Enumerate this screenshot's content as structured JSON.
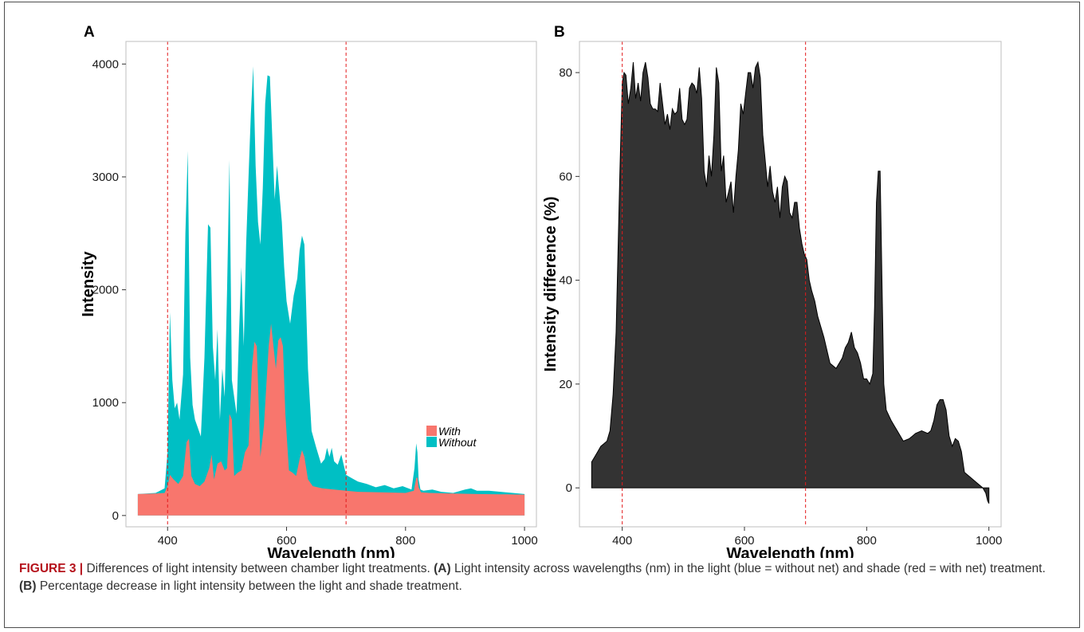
{
  "chart_data": [
    {
      "panel_label": "A",
      "type": "area",
      "xlabel": "Wavelength (nm)",
      "ylabel": "Intensity",
      "xlim": [
        330,
        1020
      ],
      "ylim": [
        -100,
        4200
      ],
      "x_ticks": [
        400,
        600,
        800,
        1000
      ],
      "y_ticks": [
        0,
        1000,
        2000,
        3000,
        4000
      ],
      "vlines": [
        400,
        700
      ],
      "grid": false,
      "legend": {
        "position": "bottom-right",
        "entries": [
          "With",
          "Without"
        ]
      },
      "series": [
        {
          "name": "Without",
          "color": "#00BFC4",
          "x": [
            350,
            380,
            395,
            400,
            404,
            408,
            412,
            416,
            420,
            426,
            430,
            434,
            438,
            442,
            446,
            450,
            456,
            462,
            468,
            472,
            476,
            480,
            484,
            488,
            492,
            496,
            500,
            504,
            508,
            512,
            516,
            520,
            524,
            528,
            532,
            536,
            540,
            544,
            548,
            552,
            556,
            560,
            564,
            568,
            572,
            576,
            580,
            584,
            588,
            592,
            596,
            600,
            606,
            612,
            618,
            622,
            626,
            630,
            636,
            642,
            650,
            658,
            664,
            668,
            672,
            676,
            680,
            686,
            692,
            700,
            710,
            720,
            735,
            750,
            765,
            780,
            795,
            810,
            815,
            818,
            820,
            822,
            825,
            830,
            845,
            860,
            880,
            900,
            910,
            920,
            940,
            960,
            980,
            1000
          ],
          "values": [
            190,
            200,
            240,
            560,
            1800,
            1200,
            950,
            1000,
            850,
            1250,
            2500,
            3230,
            1400,
            980,
            850,
            790,
            700,
            1400,
            2580,
            2550,
            1500,
            1200,
            1650,
            850,
            1300,
            1050,
            2000,
            3150,
            1200,
            1050,
            900,
            1600,
            2200,
            1500,
            2400,
            3000,
            3550,
            3980,
            3100,
            2600,
            2400,
            2900,
            3650,
            3900,
            3890,
            3350,
            2800,
            3100,
            2850,
            2600,
            2200,
            1900,
            1700,
            1950,
            2100,
            2350,
            2480,
            2400,
            1300,
            750,
            600,
            460,
            500,
            600,
            520,
            600,
            480,
            450,
            540,
            360,
            330,
            300,
            280,
            250,
            270,
            240,
            260,
            230,
            420,
            640,
            560,
            320,
            230,
            220,
            230,
            210,
            200,
            230,
            240,
            220,
            220,
            210,
            200,
            190
          ]
        },
        {
          "name": "With",
          "color": "#F8766D",
          "x": [
            350,
            380,
            395,
            400,
            404,
            410,
            418,
            426,
            432,
            436,
            440,
            446,
            454,
            462,
            470,
            474,
            478,
            484,
            490,
            496,
            500,
            504,
            508,
            512,
            518,
            524,
            530,
            536,
            542,
            546,
            550,
            556,
            562,
            566,
            570,
            574,
            578,
            582,
            586,
            590,
            594,
            598,
            604,
            610,
            616,
            622,
            626,
            630,
            636,
            644,
            660,
            680,
            700,
            720,
            760,
            800,
            814,
            818,
            820,
            822,
            826,
            840,
            880,
            920,
            960,
            1000
          ],
          "values": [
            190,
            195,
            200,
            260,
            360,
            320,
            280,
            350,
            650,
            680,
            350,
            280,
            260,
            300,
            420,
            540,
            320,
            460,
            480,
            400,
            420,
            900,
            850,
            350,
            380,
            400,
            560,
            620,
            1320,
            1540,
            1500,
            520,
            800,
            1150,
            1500,
            1700,
            1500,
            1300,
            1550,
            1580,
            1500,
            900,
            400,
            380,
            350,
            500,
            580,
            520,
            320,
            260,
            240,
            230,
            220,
            210,
            205,
            200,
            220,
            330,
            340,
            250,
            205,
            200,
            195,
            190,
            188,
            185
          ]
        }
      ]
    },
    {
      "panel_label": "B",
      "type": "area",
      "xlabel": "Wavelength (nm)",
      "ylabel": "Intensity difference (%)",
      "xlim": [
        330,
        1020
      ],
      "ylim": [
        -7.5,
        86
      ],
      "x_ticks": [
        400,
        600,
        800,
        1000
      ],
      "y_ticks": [
        0,
        20,
        40,
        60,
        80
      ],
      "vlines": [
        400,
        700
      ],
      "grid": false,
      "series": [
        {
          "name": "",
          "color": "#333333",
          "x": [
            350,
            355,
            360,
            365,
            370,
            375,
            380,
            385,
            390,
            393,
            396,
            400,
            403,
            406,
            410,
            414,
            418,
            422,
            426,
            430,
            434,
            438,
            442,
            446,
            450,
            454,
            458,
            462,
            466,
            470,
            474,
            478,
            482,
            486,
            490,
            494,
            498,
            502,
            506,
            510,
            514,
            518,
            522,
            526,
            530,
            534,
            538,
            542,
            546,
            550,
            554,
            558,
            562,
            566,
            570,
            574,
            578,
            582,
            586,
            590,
            594,
            598,
            602,
            606,
            610,
            614,
            618,
            622,
            626,
            630,
            634,
            638,
            642,
            646,
            650,
            654,
            658,
            662,
            666,
            670,
            674,
            678,
            682,
            686,
            690,
            694,
            698,
            702,
            706,
            710,
            715,
            720,
            730,
            740,
            750,
            760,
            765,
            770,
            775,
            780,
            785,
            790,
            795,
            800,
            805,
            810,
            813,
            816,
            819,
            822,
            825,
            828,
            832,
            836,
            840,
            845,
            850,
            855,
            860,
            870,
            880,
            890,
            900,
            905,
            910,
            915,
            920,
            925,
            930,
            935,
            940,
            945,
            950,
            955,
            960,
            970,
            980,
            990,
            995,
            998,
            1000
          ],
          "values": [
            5,
            6,
            7,
            8,
            8.5,
            9,
            11,
            18,
            30,
            45,
            60,
            78,
            80,
            79.5,
            74,
            77,
            82,
            75,
            78,
            74.5,
            80,
            82,
            79,
            74,
            73,
            73,
            72.5,
            78,
            74,
            70,
            72,
            69,
            73,
            72,
            72.5,
            77,
            71,
            70,
            71,
            77,
            78,
            77.5,
            76,
            81,
            75,
            61,
            58,
            64,
            60,
            68,
            81,
            78,
            61,
            64,
            55,
            57,
            59,
            53,
            60,
            65,
            74,
            72,
            76,
            80,
            80,
            77,
            81,
            82,
            79,
            68,
            63,
            58,
            62,
            57,
            55,
            58,
            52,
            58,
            60,
            59,
            53,
            52,
            55,
            55,
            50,
            47,
            45,
            44,
            40,
            38,
            36,
            33,
            29,
            24,
            23,
            25,
            27,
            28,
            30,
            27,
            26,
            24,
            21,
            21,
            20,
            22,
            35,
            55,
            61,
            61,
            40,
            20,
            15,
            14,
            13,
            12,
            11,
            10,
            9,
            9.5,
            10.5,
            11,
            10.5,
            11,
            13,
            16,
            17,
            17,
            15,
            10,
            8,
            9.5,
            9,
            7,
            3,
            2,
            1,
            0,
            -1,
            -2.5,
            -3
          ]
        }
      ]
    }
  ],
  "caption": {
    "label": "FIGURE 3 |",
    "part1": " Differences of light intensity between chamber light treatments. ",
    "a_label": "(A)",
    "part2": " Light intensity across wavelengths (nm) in the light (blue = without net) and shade (red = with net) treatment. ",
    "b_label": "(B)",
    "part3": " Percentage decrease in light intensity between the light and shade treatment."
  },
  "colors": {
    "vline": "#E31A1C",
    "panel_border": "#bfbfbf",
    "axis_text": "#1a1a1a",
    "caption_label": "#b5121b"
  }
}
